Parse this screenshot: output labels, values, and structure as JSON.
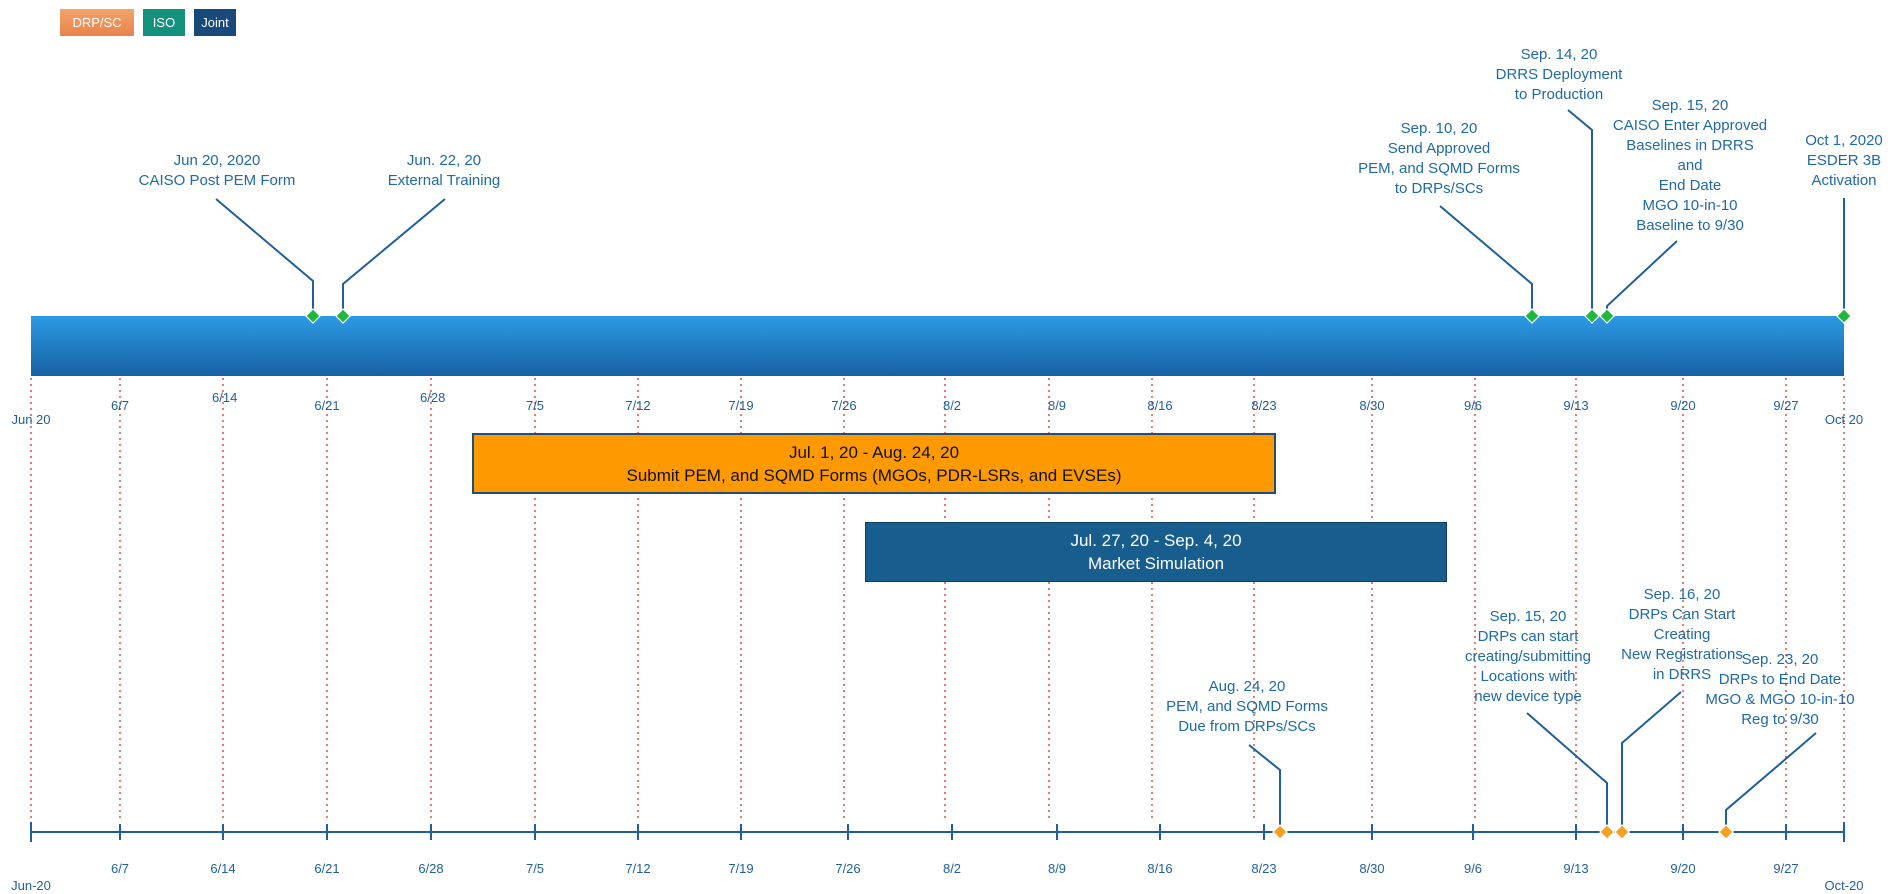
{
  "legend": [
    {
      "label": "DRP/SC",
      "color": "#ec8f52"
    },
    {
      "label": "ISO",
      "color": "#13917f"
    },
    {
      "label": "Joint",
      "color": "#17497a"
    }
  ],
  "colors": {
    "bar_top": "#2b9be3",
    "bar_bottom": "#1860a4",
    "iso_marker": "#1db83c",
    "drp_marker": "#f5a020",
    "guide_red": "#d63a2a",
    "axis": "#1f5f9a"
  },
  "top_timeline": {
    "start_label": "Jun 20",
    "end_label": "Oct 20",
    "ticks": [
      "6/7",
      "6/14",
      "6/21",
      "6/28",
      "7/5",
      "7/12",
      "7/19",
      "7/26",
      "8/2",
      "8/9",
      "8/16",
      "8/23",
      "8/30",
      "9/6",
      "9/13",
      "9/20",
      "9/27"
    ],
    "milestones": [
      {
        "date": "Jun 20, 2020",
        "text": [
          "CAISO Post PEM Form"
        ]
      },
      {
        "date": "Jun. 22, 20",
        "text": [
          "External Training"
        ]
      },
      {
        "date": "Sep. 10, 20",
        "text": [
          "Send Approved",
          "PEM, and SQMD Forms",
          "to DRPs/SCs"
        ]
      },
      {
        "date": "Sep. 14, 20",
        "text": [
          "DRRS Deployment",
          "to Production"
        ]
      },
      {
        "date": "Sep. 15, 20",
        "text": [
          "CAISO Enter Approved",
          "Baselines in DRRS",
          "and",
          "End Date",
          "MGO 10-in-10",
          "Baseline to 9/30"
        ]
      },
      {
        "date": "Oct 1, 2020",
        "text": [
          "ESDER 3B",
          "Activation"
        ]
      }
    ]
  },
  "spans": {
    "submit": {
      "dates": "Jul. 1, 20 - Aug. 24, 20",
      "title": "Submit PEM, and SQMD Forms (MGOs, PDR-LSRs, and EVSEs)"
    },
    "simulation": {
      "dates": "Jul. 27, 20 - Sep. 4, 20",
      "title": "Market Simulation"
    }
  },
  "bottom_timeline": {
    "start_label": "Jun-20",
    "end_label": "Oct-20",
    "ticks": [
      "6/7",
      "6/14",
      "6/21",
      "6/28",
      "7/5",
      "7/12",
      "7/19",
      "7/26",
      "8/2",
      "8/9",
      "8/16",
      "8/23",
      "8/30",
      "9/6",
      "9/13",
      "9/20",
      "9/27"
    ],
    "milestones": [
      {
        "date": "Aug. 24, 20",
        "text": [
          "PEM, and SQMD Forms",
          "Due from DRPs/SCs"
        ]
      },
      {
        "date": "Sep. 15, 20",
        "text": [
          "DRPs can start",
          "creating/submitting",
          "Locations with",
          "new device type"
        ]
      },
      {
        "date": "Sep. 16, 20",
        "text": [
          "DRPs Can Start",
          "Creating",
          "New Registrations",
          "in DRRS"
        ]
      },
      {
        "date": "Sep. 23, 20",
        "text": [
          "DRPs to End Date",
          "MGO & MGO 10-in-10",
          "Reg to 9/30"
        ]
      }
    ]
  }
}
